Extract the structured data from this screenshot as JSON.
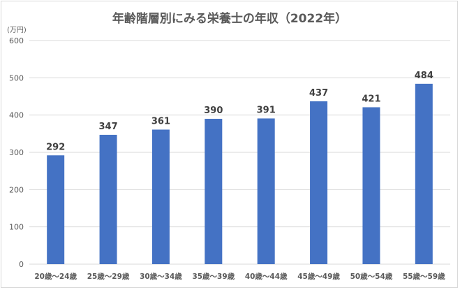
{
  "chart_data": {
    "type": "bar",
    "title": "年齢階層別にみる栄養士の年収（2022年）",
    "unit_label": "(万円)",
    "xlabel": "",
    "ylabel": "",
    "categories": [
      "20歳～24歳",
      "25歳～29歳",
      "30歳～34歳",
      "35歳～39歳",
      "40歳～44歳",
      "45歳～49歳",
      "50歳～54歳",
      "55歳～59歳"
    ],
    "values": [
      292,
      347,
      361,
      390,
      391,
      437,
      421,
      484
    ],
    "ylim": [
      0,
      600
    ],
    "yticks": [
      0,
      100,
      200,
      300,
      400,
      500,
      600
    ],
    "grid": true,
    "legend": "none",
    "bar_color": "#4472c4",
    "grid_color": "#d9d9d9",
    "text_color": "#595959"
  }
}
